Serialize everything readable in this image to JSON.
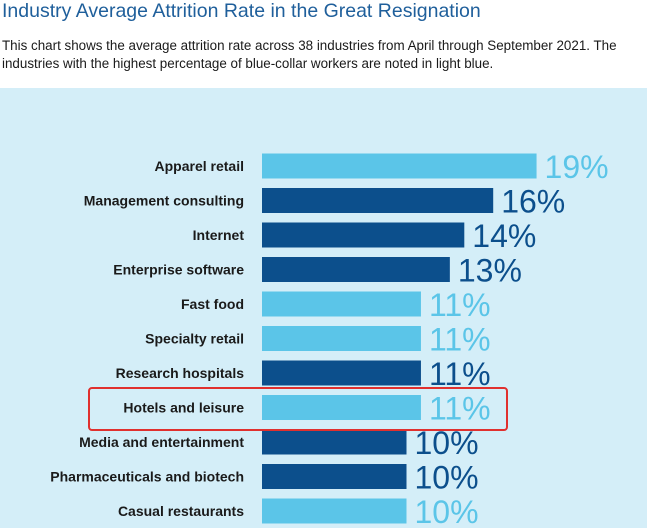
{
  "title": "Industry Average Attrition Rate in the Great Resignation",
  "subtitle": "This chart shows the average attrition rate across 38 industries from April through September 2021. The industries with the highest percentage of blue-collar workers are noted in light blue.",
  "colors": {
    "light_blue": "#5bc5e8",
    "dark_blue": "#0c4f8c",
    "background": "#d4eef8",
    "highlight_box": "#e0302e"
  },
  "highlighted_category": "Hotels and leisure",
  "chart_data": {
    "type": "bar",
    "orientation": "horizontal",
    "categories": [
      "Apparel retail",
      "Management consulting",
      "Internet",
      "Enterprise software",
      "Fast food",
      "Specialty retail",
      "Research hospitals",
      "Hotels and leisure",
      "Media and entertainment",
      "Pharmaceuticals and biotech",
      "Casual restaurants"
    ],
    "values": [
      19,
      16,
      14,
      13,
      11,
      11,
      11,
      11,
      10,
      10,
      10
    ],
    "value_labels": [
      "19%",
      "16%",
      "14%",
      "13%",
      "11%",
      "11%",
      "11%",
      "11%",
      "10%",
      "10%",
      "10%"
    ],
    "blue_collar": [
      true,
      false,
      false,
      false,
      true,
      true,
      false,
      true,
      false,
      false,
      true
    ],
    "unit": "%"
  }
}
